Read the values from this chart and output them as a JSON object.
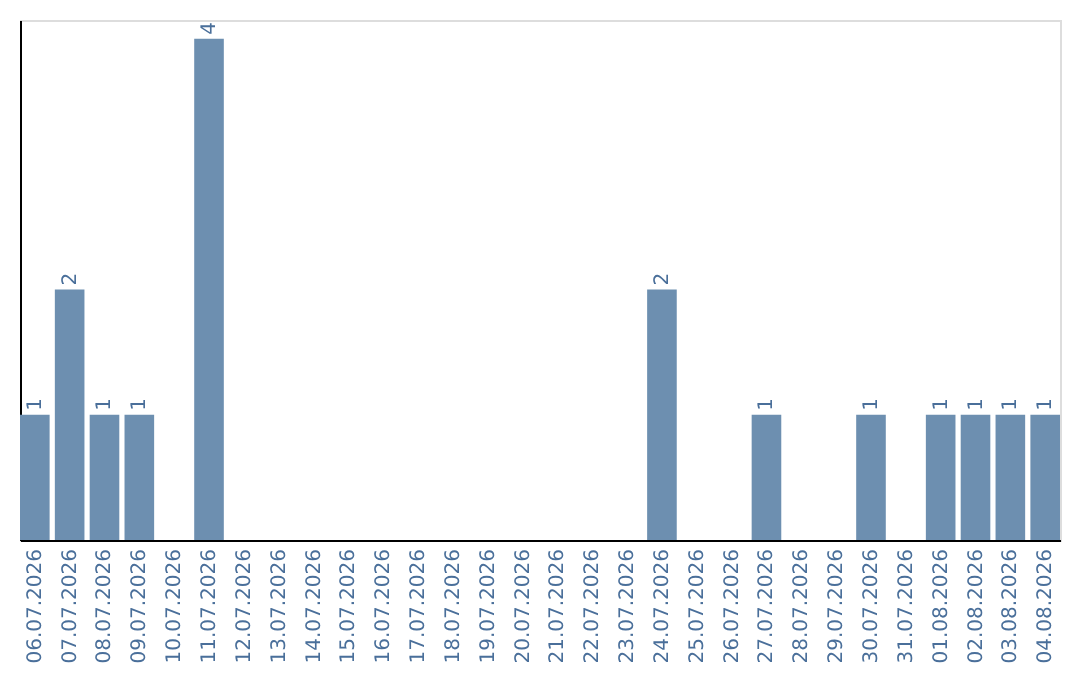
{
  "chart_data": {
    "type": "bar",
    "categories": [
      "06.07.2026",
      "07.07.2026",
      "08.07.2026",
      "09.07.2026",
      "10.07.2026",
      "11.07.2026",
      "12.07.2026",
      "13.07.2026",
      "14.07.2026",
      "15.07.2026",
      "16.07.2026",
      "17.07.2026",
      "18.07.2026",
      "19.07.2026",
      "20.07.2026",
      "21.07.2026",
      "22.07.2026",
      "23.07.2026",
      "24.07.2026",
      "25.07.2026",
      "26.07.2026",
      "27.07.2026",
      "28.07.2026",
      "29.07.2026",
      "30.07.2026",
      "31.07.2026",
      "01.08.2026",
      "02.08.2026",
      "03.08.2026",
      "04.08.2026"
    ],
    "values": [
      1,
      2,
      1,
      1,
      0,
      4,
      0,
      0,
      0,
      0,
      0,
      0,
      0,
      0,
      0,
      0,
      0,
      0,
      2,
      0,
      0,
      1,
      0,
      0,
      1,
      0,
      1,
      1,
      1,
      1
    ],
    "value_labels": [
      "1",
      "2",
      "1",
      "1",
      null,
      "4",
      null,
      null,
      null,
      null,
      null,
      null,
      null,
      null,
      null,
      null,
      null,
      null,
      "2",
      null,
      null,
      "1",
      null,
      null,
      "1",
      null,
      "1",
      "1",
      "1",
      "1"
    ],
    "color": "#6d8fb0",
    "ylim": [
      0,
      4.15
    ],
    "tick_labels": "x",
    "grid": false
  }
}
